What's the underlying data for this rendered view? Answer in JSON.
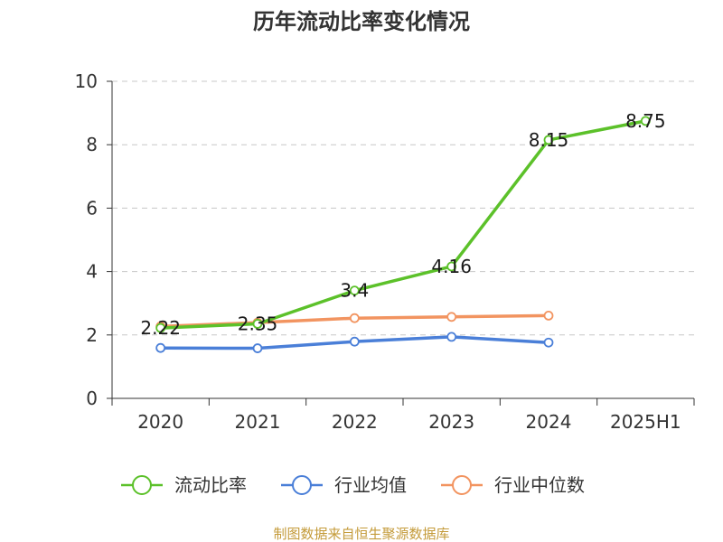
{
  "chart_data": {
    "type": "line",
    "title": "历年流动比率变化情况",
    "categories": [
      "2020",
      "2021",
      "2022",
      "2023",
      "2024",
      "2025H1"
    ],
    "ylim": [
      0,
      10
    ],
    "yticks": [
      "0",
      "2",
      "4",
      "6",
      "8",
      "10"
    ],
    "grid": true,
    "legend_position": "bottom",
    "series": [
      {
        "name": "流动比率",
        "color": "#5cc12a",
        "values": [
          2.22,
          2.35,
          3.4,
          4.16,
          8.15,
          8.75
        ],
        "labels": [
          "2.22",
          "2.35",
          "3.4",
          "4.16",
          "8.15",
          "8.75"
        ]
      },
      {
        "name": "行业均值",
        "color": "#4a7fd8",
        "values": [
          1.59,
          1.58,
          1.79,
          1.94,
          1.76,
          null
        ]
      },
      {
        "name": "行业中位数",
        "color": "#f29460",
        "values": [
          2.27,
          2.39,
          2.53,
          2.57,
          2.61,
          null
        ]
      }
    ],
    "source": "制图数据来自恒生聚源数据库"
  }
}
